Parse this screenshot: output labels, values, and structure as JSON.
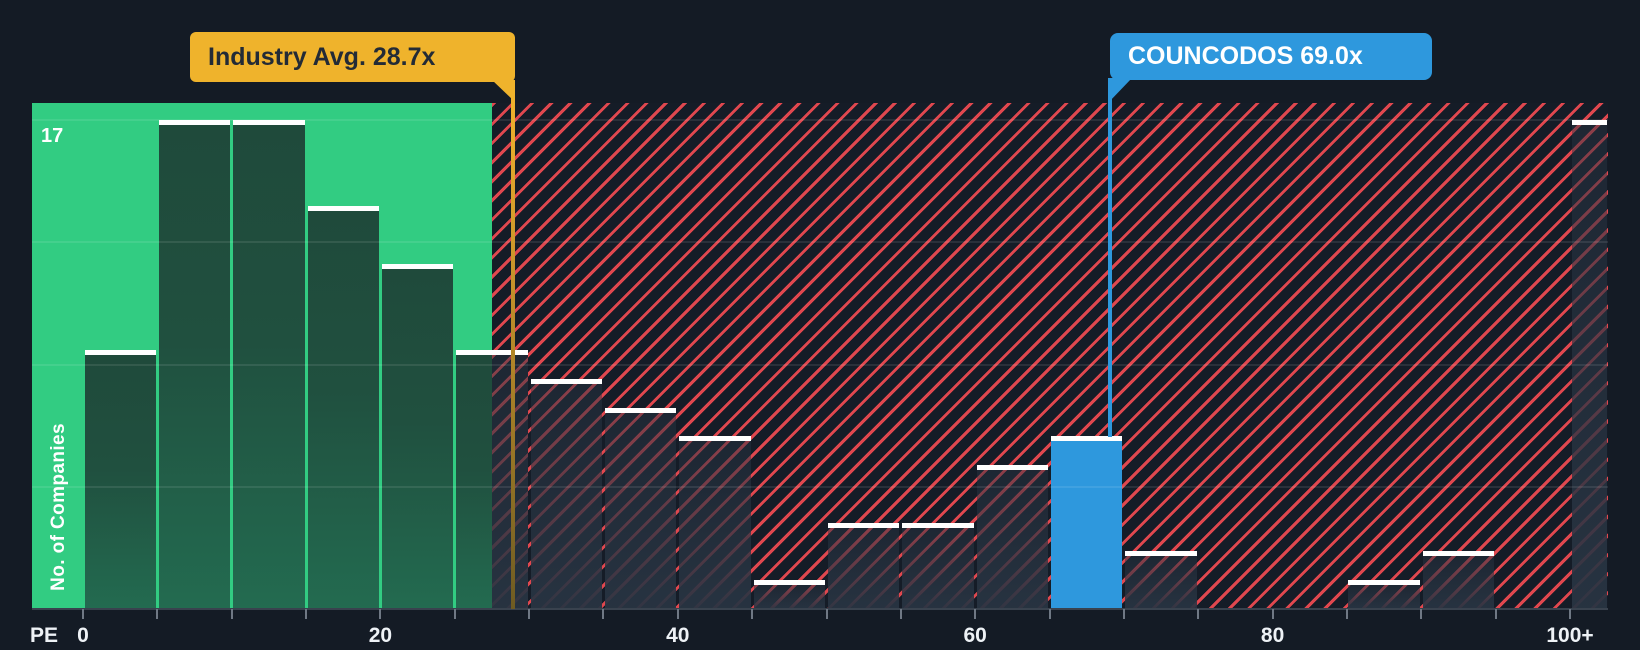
{
  "chart_data": {
    "type": "bar",
    "subtype": "histogram",
    "title": "",
    "xlabel": "PE",
    "ylabel": "No. of Companies",
    "ymax_label": "17",
    "ylim": [
      0,
      17.6
    ],
    "grid": true,
    "y_gridlines_values": [
      4.25,
      8.5,
      12.75,
      17
    ],
    "bins": [
      {
        "range": "0-5",
        "count": 9
      },
      {
        "range": "5-10",
        "count": 17
      },
      {
        "range": "10-15",
        "count": 17
      },
      {
        "range": "15-20",
        "count": 14
      },
      {
        "range": "20-25",
        "count": 12
      },
      {
        "range": "25-30",
        "count": 9
      },
      {
        "range": "30-35",
        "count": 8
      },
      {
        "range": "35-40",
        "count": 7
      },
      {
        "range": "40-45",
        "count": 6
      },
      {
        "range": "45-50",
        "count": 1
      },
      {
        "range": "50-55",
        "count": 3
      },
      {
        "range": "55-60",
        "count": 3
      },
      {
        "range": "60-65",
        "count": 5
      },
      {
        "range": "65-70",
        "count": 6,
        "highlight": true
      },
      {
        "range": "70-75",
        "count": 2
      },
      {
        "range": "75-80",
        "count": 0
      },
      {
        "range": "80-85",
        "count": 0
      },
      {
        "range": "85-90",
        "count": 1
      },
      {
        "range": "90-95",
        "count": 2
      },
      {
        "range": "95-100",
        "count": 0
      },
      {
        "range": "100+",
        "count": 17
      }
    ],
    "x_axis": {
      "minor_tick_step": 5,
      "tick_labels": [
        {
          "pe": 0,
          "label": "0"
        },
        {
          "pe": 20,
          "label": "20"
        },
        {
          "pe": 40,
          "label": "40"
        },
        {
          "pe": 60,
          "label": "60"
        },
        {
          "pe": 80,
          "label": "80"
        },
        {
          "pe": 100,
          "label": "100+"
        }
      ]
    },
    "annotations": {
      "industry_avg": {
        "label": "Industry Avg. 28.7x",
        "value": 28.7,
        "color": "#EFB32C"
      },
      "company": {
        "label": "COUNCODOS 69.0x",
        "value": 69.0,
        "color": "#2E98DD"
      }
    },
    "zones": {
      "below_avg_color": "#32CC82",
      "above_avg_stripe_color": "#F14B52",
      "background_color": "#141B25",
      "bar_cap_color": "#FFFFFF",
      "highlight_bar_color": "#2E98DD"
    }
  }
}
